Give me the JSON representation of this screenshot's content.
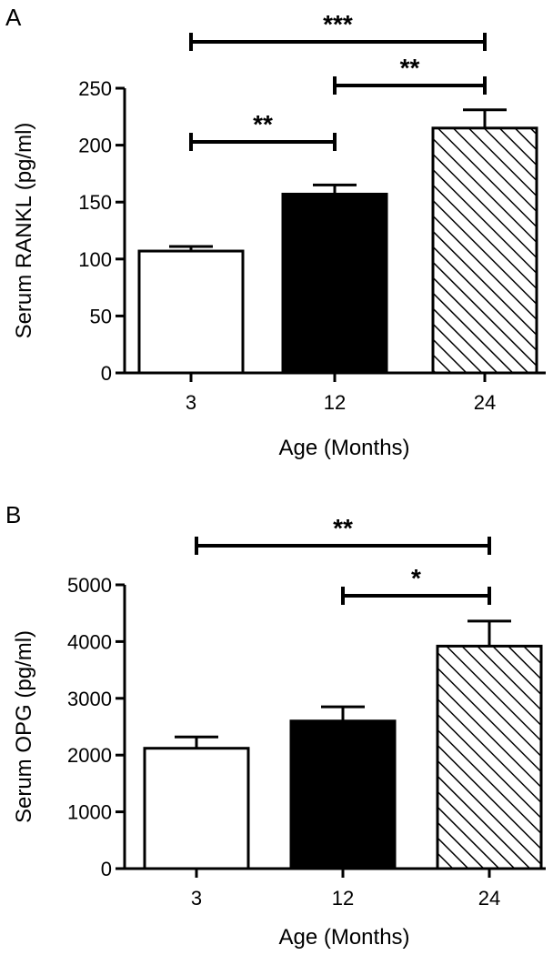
{
  "chart_data": [
    {
      "panel": "A",
      "type": "bar",
      "categories": [
        "3",
        "12",
        "24"
      ],
      "values": [
        107,
        157,
        215
      ],
      "errors": [
        4,
        8,
        16
      ],
      "fills": [
        "white",
        "black",
        "hatch"
      ],
      "xlabel": "Age (Months)",
      "ylabel": "Serum RANKL (pg/ml)",
      "ylim": [
        0,
        250
      ],
      "yticks": [
        0,
        50,
        100,
        150,
        200,
        250
      ],
      "grid": false,
      "significance": [
        {
          "from": 0,
          "to": 1,
          "label": "**"
        },
        {
          "from": 1,
          "to": 2,
          "label": "**"
        },
        {
          "from": 0,
          "to": 2,
          "label": "***"
        }
      ]
    },
    {
      "panel": "B",
      "type": "bar",
      "categories": [
        "3",
        "12",
        "24"
      ],
      "values": [
        2120,
        2600,
        3920
      ],
      "errors": [
        200,
        250,
        440
      ],
      "fills": [
        "white",
        "black",
        "hatch"
      ],
      "xlabel": "Age (Months)",
      "ylabel": "Serum OPG  (pg/ml)",
      "ylim": [
        0,
        5000
      ],
      "yticks": [
        0,
        1000,
        2000,
        3000,
        4000,
        5000
      ],
      "grid": false,
      "significance": [
        {
          "from": 1,
          "to": 2,
          "label": "*"
        },
        {
          "from": 0,
          "to": 2,
          "label": "**"
        }
      ]
    }
  ]
}
